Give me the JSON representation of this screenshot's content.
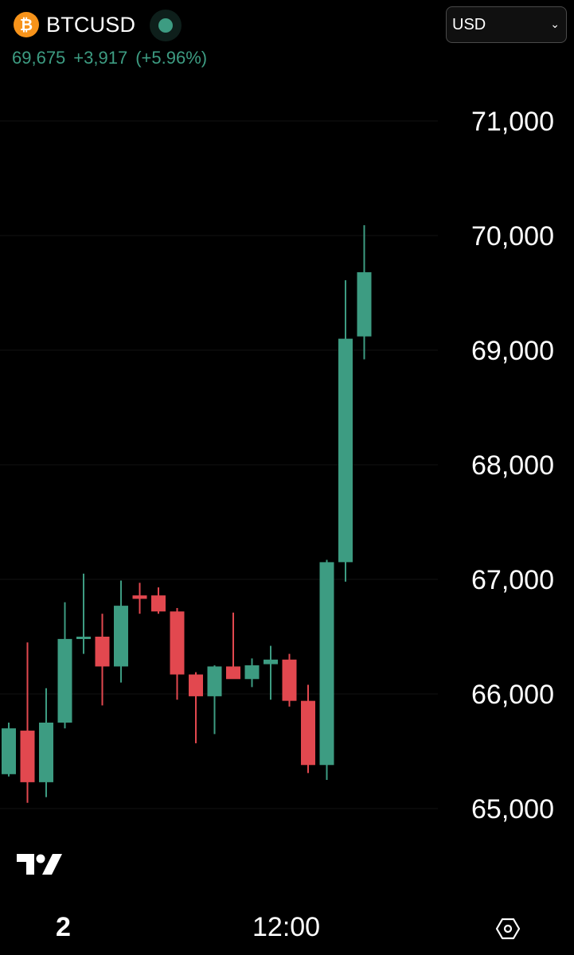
{
  "header": {
    "coin_icon": "bitcoin-icon",
    "coin_glyph": "₿",
    "symbol": "BTCUSD",
    "status_icon": "market-status-dot",
    "price": "69,675",
    "change": "+3,917",
    "change_pct": "(+5.96%)",
    "currency": "USD",
    "currency_options": [
      "USD"
    ]
  },
  "footer": {
    "interval": "2",
    "time_label": "12:00",
    "logo_icon": "tradingview-logo-icon",
    "settings_icon": "settings-hexagon-icon"
  },
  "colors": {
    "up": "#3d9c82",
    "down": "#e2484f",
    "brand": "#f7931a"
  },
  "chart_data": {
    "type": "candlestick",
    "y_ticks": [
      "71,000",
      "70,000",
      "69,000",
      "68,000",
      "67,000",
      "66,000",
      "65,000"
    ],
    "ylim": [
      64300,
      71900
    ],
    "grid": true,
    "x_tick": "12:00",
    "candles": [
      {
        "o": 65300,
        "h": 65750,
        "l": 65280,
        "c": 65700
      },
      {
        "o": 65680,
        "h": 66450,
        "l": 65050,
        "c": 65230
      },
      {
        "o": 65230,
        "h": 66050,
        "l": 65100,
        "c": 65750
      },
      {
        "o": 65750,
        "h": 66800,
        "l": 65700,
        "c": 66480
      },
      {
        "o": 66480,
        "h": 67050,
        "l": 66350,
        "c": 66500
      },
      {
        "o": 66500,
        "h": 66700,
        "l": 65900,
        "c": 66240
      },
      {
        "o": 66240,
        "h": 66990,
        "l": 66100,
        "c": 66770
      },
      {
        "o": 66860,
        "h": 66970,
        "l": 66700,
        "c": 66830
      },
      {
        "o": 66860,
        "h": 66930,
        "l": 66700,
        "c": 66720
      },
      {
        "o": 66720,
        "h": 66750,
        "l": 65950,
        "c": 66170
      },
      {
        "o": 66170,
        "h": 66190,
        "l": 65570,
        "c": 65980
      },
      {
        "o": 65980,
        "h": 66250,
        "l": 65650,
        "c": 66240
      },
      {
        "o": 66240,
        "h": 66710,
        "l": 66140,
        "c": 66130
      },
      {
        "o": 66130,
        "h": 66310,
        "l": 66060,
        "c": 66250
      },
      {
        "o": 66260,
        "h": 66420,
        "l": 65950,
        "c": 66300
      },
      {
        "o": 66300,
        "h": 66350,
        "l": 65890,
        "c": 65940
      },
      {
        "o": 65940,
        "h": 66080,
        "l": 65310,
        "c": 65380
      },
      {
        "o": 65380,
        "h": 67170,
        "l": 65250,
        "c": 67150
      },
      {
        "o": 67150,
        "h": 69610,
        "l": 66980,
        "c": 69100
      },
      {
        "o": 69120,
        "h": 70090,
        "l": 68920,
        "c": 69680
      }
    ]
  }
}
